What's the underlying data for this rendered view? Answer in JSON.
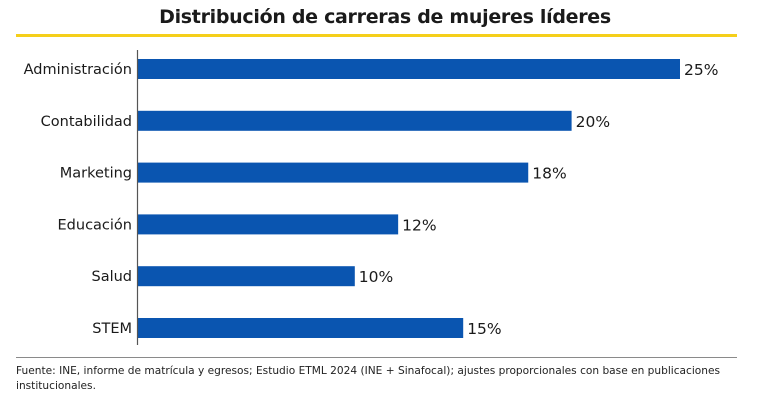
{
  "chart_data": {
    "type": "bar",
    "orientation": "horizontal",
    "title": "Distribución de carreras de mujeres líderes",
    "categories": [
      "Administración",
      "Contabilidad",
      "Marketing",
      "Educación",
      "Salud",
      "STEM"
    ],
    "values": [
      25,
      20,
      18,
      12,
      10,
      15
    ],
    "data_labels": [
      "25%",
      "20%",
      "18%",
      "12%",
      "10%",
      "15%"
    ],
    "unit": "%",
    "xlabel": "",
    "ylabel": "",
    "xlim": [
      0,
      25
    ],
    "grid": false,
    "legend": "none",
    "colors": {
      "bar": "#0a55b0",
      "accent_rule": "#f5cf1a",
      "axis": "#555555",
      "text": "#1a1a1a"
    }
  },
  "footnote": "Fuente: INE, informe de matrícula y egresos; Estudio ETML 2024 (INE + Sinafocal); ajustes proporcionales con base en publicaciones institucionales."
}
